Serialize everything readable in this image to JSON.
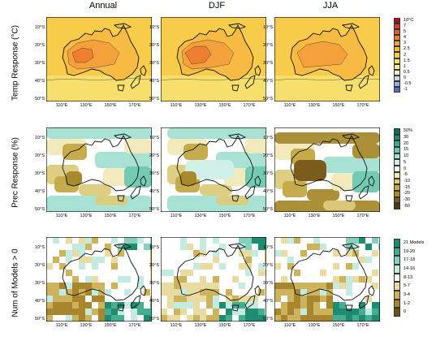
{
  "columns": [
    "Annual",
    "DJF",
    "JJA"
  ],
  "rows": [
    {
      "title": "Temp Response (°C)",
      "legend": [
        "10°C",
        "7",
        "5",
        "4",
        "3",
        "2.5",
        "2",
        "1.5",
        "1",
        "0.5",
        "0",
        "-0.5",
        "-1"
      ],
      "colors": [
        "#a8102a",
        "#d63a2a",
        "#e8592c",
        "#ef7e30",
        "#f4a13b",
        "#f7bb43",
        "#f6cc4a",
        "#f7df6d",
        "#f8ec9a",
        "#f7f3c8",
        "#c9d6ee",
        "#97a9dd",
        "#5a6fc1"
      ]
    },
    {
      "title": "Prec Response (%)",
      "legend": [
        "50%",
        "30",
        "20",
        "15",
        "10",
        "5",
        "0",
        "-5",
        "-10",
        "-15",
        "-20",
        "-30",
        "-50"
      ],
      "colors": [
        "#0b6b53",
        "#1f8a6e",
        "#3aaa8c",
        "#6cc8b0",
        "#a3e0d3",
        "#d1f0ea",
        "#ffffff",
        "#f1e9b8",
        "#dccb7b",
        "#c3a845",
        "#a88a2c",
        "#7c5c1d",
        "#4f3714"
      ]
    },
    {
      "title": "Num of Models > 0",
      "legend": [
        "21 Models",
        "19-20",
        "17-18",
        "14-16",
        "8-13",
        "5-7",
        "3-4",
        "1-2",
        "0"
      ],
      "colors": [
        "#1e8d6f",
        "#46ae90",
        "#86d0bc",
        "#c4ebe2",
        "#ffffff",
        "#e8dca2",
        "#cdb35c",
        "#a8862d",
        "#6f4e16"
      ]
    }
  ],
  "lat_labels": [
    "10°S",
    "20°S",
    "30°S",
    "40°S",
    "50°S"
  ],
  "lon_labels": [
    "110°E",
    "130°E",
    "150°E",
    "170°E"
  ]
}
